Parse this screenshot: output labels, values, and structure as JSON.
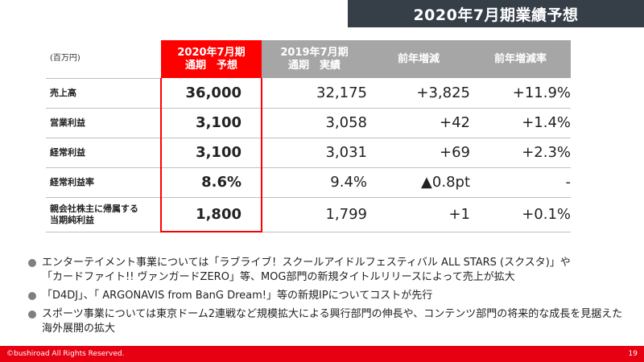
{
  "page": {
    "title": "2020年7月期業績予想"
  },
  "table": {
    "unit": "(百万円)",
    "headers": [
      {
        "line1": "2020年7月期",
        "line2": "通期　予想"
      },
      {
        "line1": "2019年7月期",
        "line2": "通期　実績"
      },
      {
        "line1": "前年増減",
        "line2": ""
      },
      {
        "line1": "前年増減率",
        "line2": ""
      }
    ],
    "rows": [
      {
        "label": [
          "売上高"
        ],
        "forecast": "36,000",
        "actual": "32,175",
        "change": "+3,825",
        "rate": "+11.9%"
      },
      {
        "label": [
          "営業利益"
        ],
        "forecast": "3,100",
        "actual": "3,058",
        "change": "+42",
        "rate": "+1.4%"
      },
      {
        "label": [
          "経常利益"
        ],
        "forecast": "3,100",
        "actual": "3,031",
        "change": "+69",
        "rate": "+2.3%"
      },
      {
        "label": [
          "経常利益率"
        ],
        "forecast": "8.6%",
        "actual": "9.4%",
        "change": "▲0.8pt",
        "rate": "-"
      },
      {
        "label": [
          "親会社株主に帰属する",
          "当期純利益"
        ],
        "forecast": "1,800",
        "actual": "1,799",
        "change": "+1",
        "rate": "+0.1%"
      }
    ]
  },
  "bullets": [
    {
      "lines": [
        "エンターテイメント事業については「ラブライブ！スクールアイドルフェスティバル ALL STARS (スクスタ)」や",
        "「カードファイト!! ヴァンガードZERO」等、MOG部門の新規タイトルリリースによって売上が拡大"
      ]
    },
    {
      "lines": [
        "「D4DJ」、「 ARGONAVIS from BanG Dream!」等の新規IPについてコストが先行"
      ]
    },
    {
      "lines": [
        "スポーツ事業については東京ドーム2連戦など規模拡大による興行部門の伸長や、コンテンツ部門の将来的な成長を見据えた",
        "海外展開の拡大"
      ]
    }
  ],
  "footer": {
    "copyright": "©bushiroad All Rights Reserved.",
    "page_number": "19"
  },
  "colors": {
    "title_bg": "#363e48",
    "highlight": "#ff0000",
    "header_gray": "#a6a6a6",
    "footer_red": "#e60012"
  }
}
